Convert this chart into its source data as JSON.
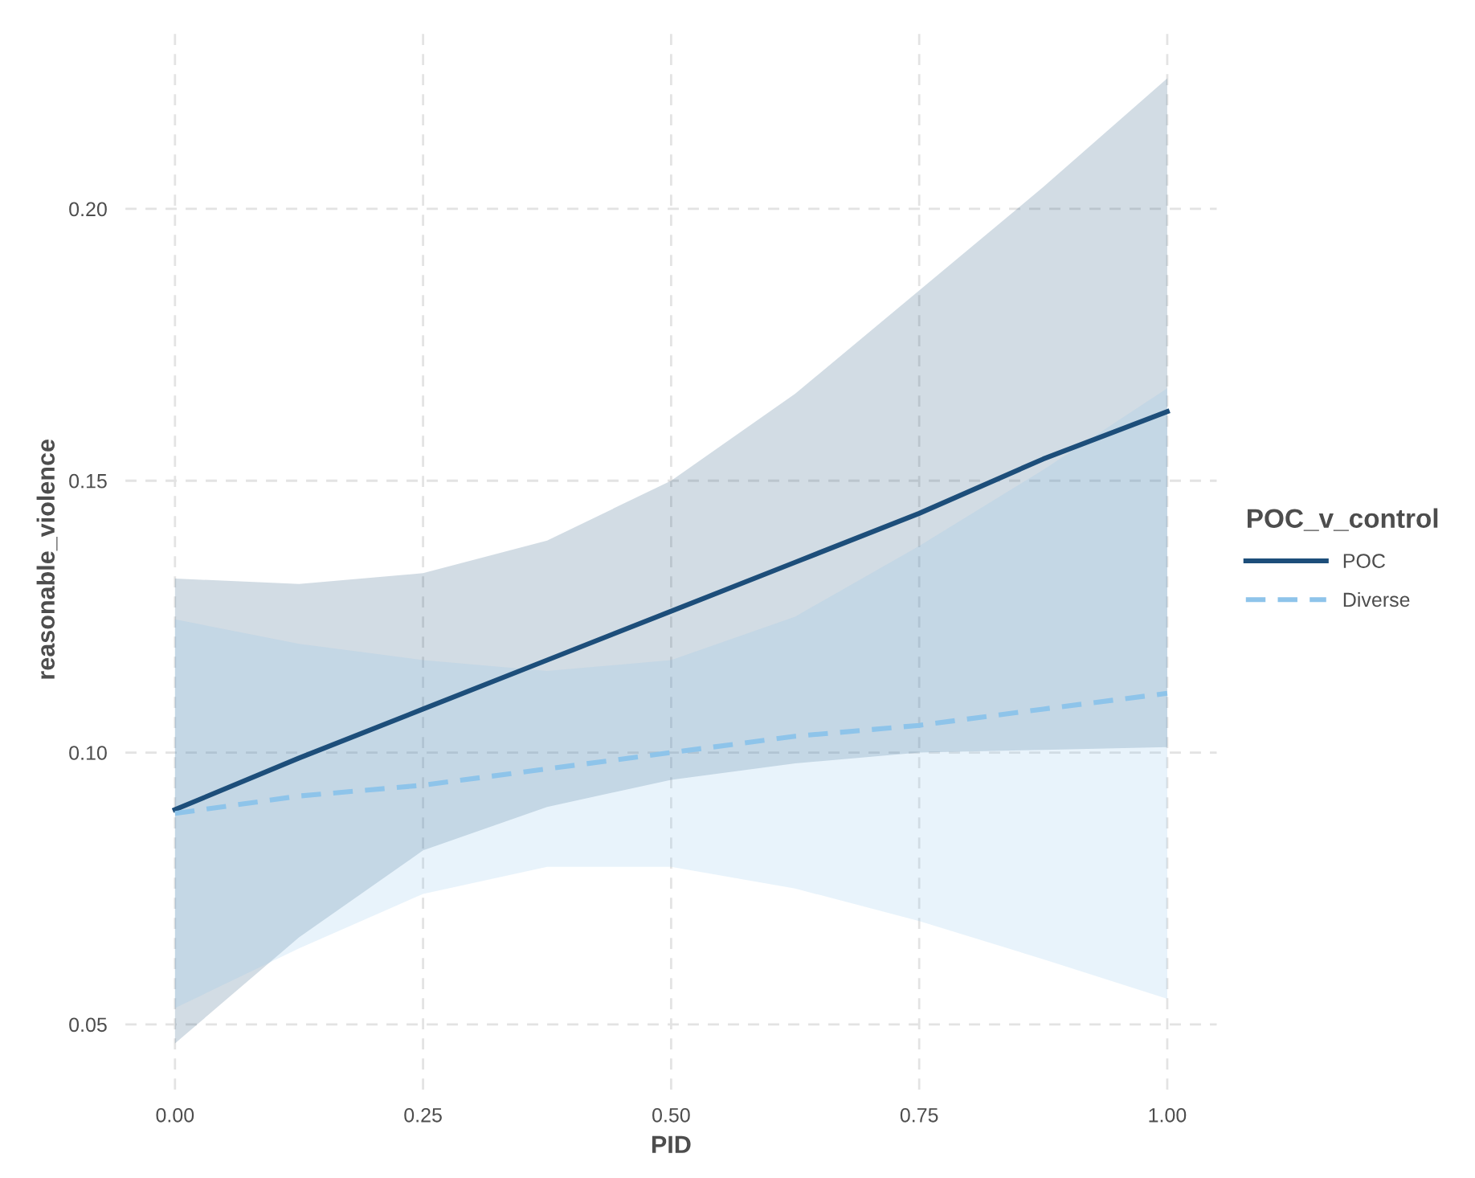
{
  "chart_data": {
    "type": "line",
    "xlabel": "PID",
    "ylabel": "reasonable_violence",
    "legend_title": "POC_v_control",
    "x": [
      0,
      0.125,
      0.25,
      0.375,
      0.5,
      0.625,
      0.75,
      0.875,
      1
    ],
    "series": [
      {
        "name": "POC",
        "color": "#1d4e7a",
        "line_style": "solid",
        "values": [
          0.0895,
          0.099,
          0.108,
          0.117,
          0.126,
          0.135,
          0.144,
          0.154,
          0.1627
        ],
        "lower": [
          0.0465,
          0.066,
          0.082,
          0.09,
          0.095,
          0.098,
          0.1,
          0.1005,
          0.101
        ],
        "upper": [
          0.132,
          0.131,
          0.133,
          0.139,
          0.15,
          0.166,
          0.185,
          0.204,
          0.224
        ]
      },
      {
        "name": "Diverse",
        "color": "#8ec4ea",
        "line_style": "dashed",
        "values": [
          0.0888,
          0.092,
          0.094,
          0.097,
          0.1,
          0.103,
          0.105,
          0.108,
          0.1109
        ],
        "lower": [
          0.053,
          0.064,
          0.074,
          0.079,
          0.079,
          0.075,
          0.069,
          0.062,
          0.0547
        ],
        "upper": [
          0.1245,
          0.12,
          0.117,
          0.115,
          0.117,
          0.125,
          0.138,
          0.152,
          0.167
        ]
      }
    ],
    "xlim": [
      -0.05,
      1.05
    ],
    "ylim": [
      0.038,
      0.233
    ],
    "xticks": [
      {
        "value": 0,
        "label": "0.00"
      },
      {
        "value": 0.25,
        "label": "0.25"
      },
      {
        "value": 0.5,
        "label": "0.50"
      },
      {
        "value": 0.75,
        "label": "0.75"
      },
      {
        "value": 1,
        "label": "1.00"
      }
    ],
    "yticks": [
      {
        "value": 0.05,
        "label": "0.05"
      },
      {
        "value": 0.1,
        "label": "0.10"
      },
      {
        "value": 0.15,
        "label": "0.15"
      },
      {
        "value": 0.2,
        "label": "0.20"
      }
    ],
    "grid": true,
    "legend": "right",
    "marker": "none"
  }
}
